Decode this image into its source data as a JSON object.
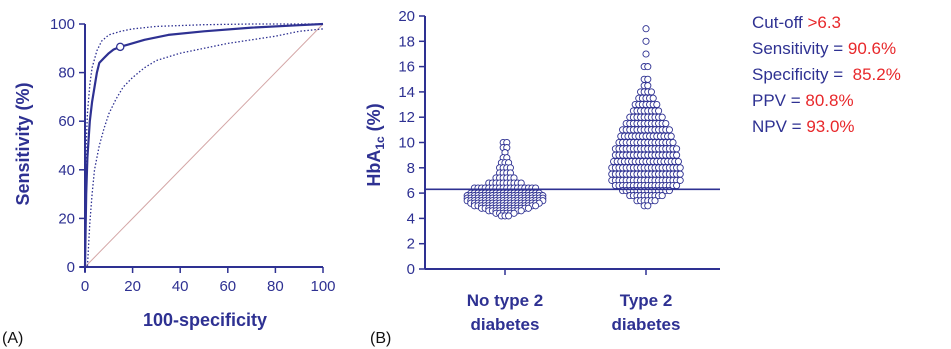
{
  "chart_data": [
    {
      "type": "line",
      "panel_label": "(A)",
      "xlabel": "100-specificity",
      "ylabel": "Sensitivity (%)",
      "xlim": [
        0,
        100
      ],
      "ylim": [
        0,
        100
      ],
      "x_ticks": [
        "0",
        "20",
        "40",
        "60",
        "80",
        "100"
      ],
      "y_ticks": [
        "0",
        "20",
        "40",
        "60",
        "80",
        "100"
      ],
      "colors": {
        "axis": "#2e3192",
        "curve": "#2e3192",
        "reference": "#d4a6a6"
      },
      "series": [
        {
          "role": "roc_curve",
          "style": "solid",
          "x": [
            0,
            0.5,
            1,
            2,
            3,
            4,
            5,
            6,
            8,
            10,
            12,
            14.8,
            18,
            25,
            35,
            50,
            70,
            90,
            100
          ],
          "y": [
            0,
            30,
            45,
            60,
            68,
            74,
            80,
            84,
            86,
            88,
            89.5,
            90.6,
            91.5,
            93.5,
            95.5,
            97,
            98.5,
            99.5,
            100
          ]
        },
        {
          "role": "upper_ci",
          "style": "dotted",
          "x": [
            0,
            0.5,
            1,
            2,
            3,
            5,
            7,
            10,
            15,
            20,
            30,
            50,
            70,
            100
          ],
          "y": [
            0,
            50,
            63,
            75,
            82,
            89,
            93,
            95.5,
            97,
            98,
            99,
            99.7,
            100,
            100
          ]
        },
        {
          "role": "lower_ci",
          "style": "dotted",
          "x": [
            0,
            1,
            2,
            3,
            4,
            6,
            8,
            10,
            13,
            16,
            20,
            25,
            30,
            40,
            50,
            60,
            70,
            80,
            90,
            100
          ],
          "y": [
            0,
            0,
            18,
            30,
            40,
            50,
            57,
            63,
            69,
            74,
            78,
            82,
            85,
            88,
            90,
            92,
            93.5,
            95,
            97,
            98
          ]
        },
        {
          "role": "reference",
          "style": "thin",
          "x": [
            0,
            100
          ],
          "y": [
            0,
            100
          ]
        }
      ],
      "cutoff_point": {
        "x": 14.8,
        "y": 90.6
      }
    },
    {
      "type": "scatter",
      "panel_label": "(B)",
      "ylabel": "HbA1c (%)",
      "ylim": [
        0,
        20
      ],
      "y_ticks": [
        "0",
        "2",
        "4",
        "6",
        "8",
        "10",
        "12",
        "14",
        "16",
        "18",
        "20"
      ],
      "categories": [
        {
          "line1": "No type 2",
          "line2": "diabetes"
        },
        {
          "line1": "Type 2",
          "line2": "diabetes"
        }
      ],
      "cutoff_line": 6.3,
      "colors": {
        "axis": "#2e3192",
        "marker": "#2e3192",
        "cutoff_line": "#2e3192"
      },
      "series": [
        {
          "rows": [
            {
              "y": 10.0,
              "n": 2
            },
            {
              "y": 9.6,
              "n": 2
            },
            {
              "y": 9.2,
              "n": 1
            },
            {
              "y": 8.8,
              "n": 2
            },
            {
              "y": 8.4,
              "n": 3
            },
            {
              "y": 8.0,
              "n": 4
            },
            {
              "y": 7.6,
              "n": 4
            },
            {
              "y": 7.2,
              "n": 6
            },
            {
              "y": 6.8,
              "n": 10
            },
            {
              "y": 6.4,
              "n": 18
            },
            {
              "y": 6.0,
              "n": 20
            },
            {
              "y": 5.8,
              "n": 22
            },
            {
              "y": 5.6,
              "n": 22
            },
            {
              "y": 5.4,
              "n": 22
            },
            {
              "y": 5.2,
              "n": 20
            },
            {
              "y": 5.0,
              "n": 18
            },
            {
              "y": 4.8,
              "n": 14
            },
            {
              "y": 4.6,
              "n": 10
            },
            {
              "y": 4.4,
              "n": 6
            },
            {
              "y": 4.2,
              "n": 3
            }
          ]
        },
        {
          "rows": [
            {
              "y": 19.0,
              "n": 1
            },
            {
              "y": 18.0,
              "n": 1
            },
            {
              "y": 17.0,
              "n": 1
            },
            {
              "y": 16.0,
              "n": 2
            },
            {
              "y": 15.0,
              "n": 2
            },
            {
              "y": 14.5,
              "n": 2
            },
            {
              "y": 14.0,
              "n": 4
            },
            {
              "y": 13.5,
              "n": 5
            },
            {
              "y": 13.0,
              "n": 7
            },
            {
              "y": 12.5,
              "n": 8
            },
            {
              "y": 12.0,
              "n": 10
            },
            {
              "y": 11.5,
              "n": 12
            },
            {
              "y": 11.0,
              "n": 14
            },
            {
              "y": 10.5,
              "n": 15
            },
            {
              "y": 10.0,
              "n": 16
            },
            {
              "y": 9.5,
              "n": 18
            },
            {
              "y": 9.0,
              "n": 18
            },
            {
              "y": 8.5,
              "n": 19
            },
            {
              "y": 8.0,
              "n": 20
            },
            {
              "y": 7.5,
              "n": 20
            },
            {
              "y": 7.0,
              "n": 20
            },
            {
              "y": 6.6,
              "n": 18
            },
            {
              "y": 6.2,
              "n": 14
            },
            {
              "y": 5.8,
              "n": 10
            },
            {
              "y": 5.4,
              "n": 6
            },
            {
              "y": 5.0,
              "n": 2
            }
          ]
        }
      ]
    }
  ],
  "stats": [
    {
      "label": "Cut-off ",
      "value": ">6.3"
    },
    {
      "label": "Sensitivity = ",
      "value": "90.6%"
    },
    {
      "label": "Specificity =  ",
      "value": "85.2%"
    },
    {
      "label": "PPV = ",
      "value": "80.8%"
    },
    {
      "label": "NPV = ",
      "value": "93.0%"
    }
  ]
}
